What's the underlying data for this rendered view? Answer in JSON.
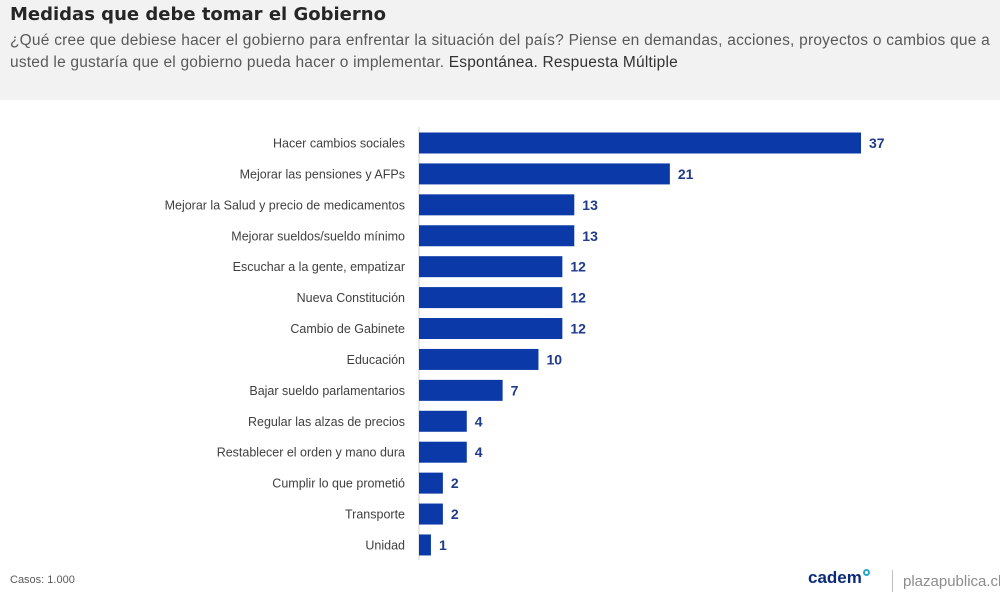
{
  "header": {
    "title": "Medidas que debe tomar el Gobierno",
    "question": "¿Qué cree que debiese hacer el gobierno para enfrentar la situación del país? Piense en demandas, acciones, proyectos o cambios que a usted le gustaría que el gobierno pueda hacer o implementar.",
    "question_type": "Espontánea. Respuesta Múltiple"
  },
  "footer": {
    "cases": "Casos: 1.000",
    "brand": "cadem",
    "site": "plazapublica.cl"
  },
  "colors": {
    "bar": "#0b3aa8",
    "value_label": "#1f3a8a",
    "header_background": "#f2f2f2"
  },
  "chart_data": {
    "type": "bar",
    "orientation": "horizontal",
    "title": "Medidas que debe tomar el Gobierno",
    "categories": [
      "Hacer cambios sociales",
      "Mejorar las pensiones y AFPs",
      "Mejorar la Salud y precio de medicamentos",
      "Mejorar sueldos/sueldo mínimo",
      "Escuchar  a la gente, empatizar",
      "Nueva Constitución",
      "Cambio de Gabinete",
      "Educación",
      "Bajar sueldo parlamentarios",
      "Regular las alzas de precios",
      "Restablecer el orden y mano dura",
      "Cumplir lo que prometió",
      "Transporte",
      "Unidad"
    ],
    "values": [
      37,
      21,
      13,
      13,
      12,
      12,
      12,
      10,
      7,
      4,
      4,
      2,
      2,
      1
    ],
    "xlim": [
      0,
      37
    ],
    "grid": false,
    "legend": "none"
  }
}
